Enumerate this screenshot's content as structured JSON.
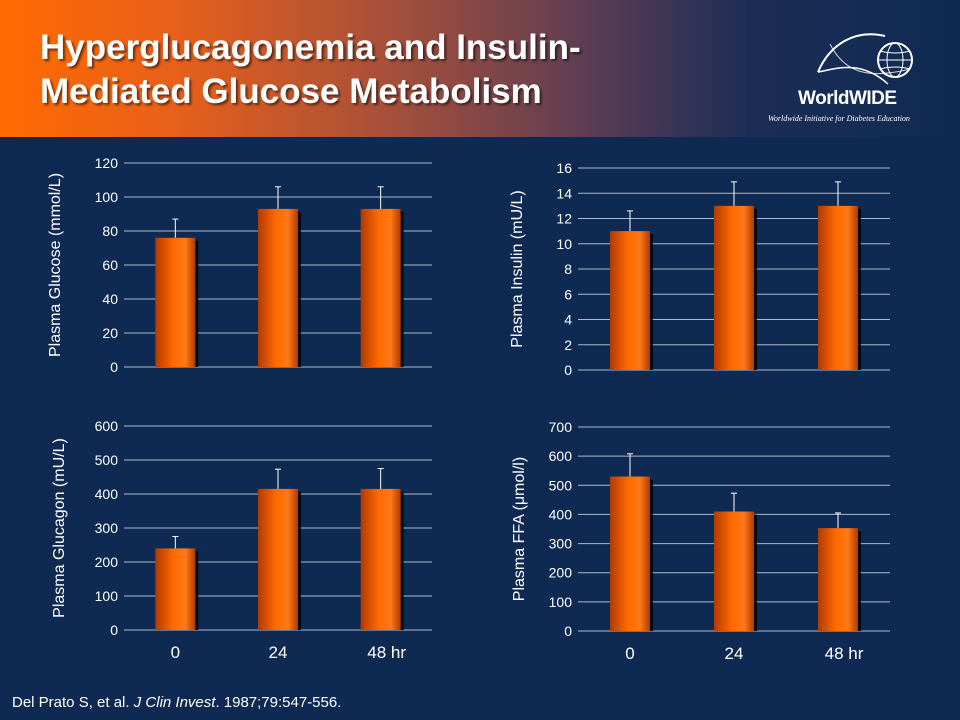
{
  "slide": {
    "title_line1": "Hyperglucagonemia and Insulin-",
    "title_line2": "Mediated Glucose Metabolism",
    "logo_name": "WorldWIDE",
    "logo_tagline": "Worldwide Initiative for Diabetes Education",
    "citation": {
      "authors": "Del Prato S, et al. ",
      "journal": "J Clin Invest",
      "details": ". 1987;79:547-556."
    }
  },
  "colors": {
    "background": "#0e2a52",
    "bar": "#ff6a00",
    "bar_dark": "#b03a00",
    "gridline": "#b0b8c8",
    "text": "#ffffff"
  },
  "chart_data": [
    {
      "type": "bar",
      "categories": [
        "0",
        "24",
        "48 hr"
      ],
      "values": [
        76,
        93,
        93
      ],
      "error": [
        11,
        13,
        13
      ],
      "ylabel": "Plasma Glucose (mmol/L)",
      "ylim": [
        0,
        120
      ],
      "yticks": [
        0,
        20,
        40,
        60,
        80,
        100,
        120
      ],
      "grid": true
    },
    {
      "type": "bar",
      "categories": [
        "0",
        "24",
        "48 hr"
      ],
      "values": [
        11,
        13,
        13
      ],
      "error": [
        1.6,
        1.9,
        1.9
      ],
      "ylabel": "Plasma Insulin (mU/L)",
      "ylim": [
        0,
        16
      ],
      "yticks": [
        0,
        2,
        4,
        6,
        8,
        10,
        12,
        14,
        16
      ],
      "grid": true
    },
    {
      "type": "bar",
      "categories": [
        "0",
        "24",
        "48 hr"
      ],
      "values": [
        240,
        415,
        415
      ],
      "error": [
        35,
        58,
        60
      ],
      "ylabel": "Plasma Glucagon (mU/L)",
      "ylim": [
        0,
        600
      ],
      "yticks": [
        0,
        100,
        200,
        300,
        400,
        500,
        600
      ],
      "grid": true
    },
    {
      "type": "bar",
      "categories": [
        "0",
        "24",
        "48 hr"
      ],
      "values": [
        530,
        410,
        353
      ],
      "error": [
        78,
        63,
        52
      ],
      "ylabel": "Plasma FFA (μmol/l)",
      "ylim": [
        0,
        700
      ],
      "yticks": [
        0,
        100,
        200,
        300,
        400,
        500,
        600,
        700
      ],
      "grid": true
    }
  ]
}
